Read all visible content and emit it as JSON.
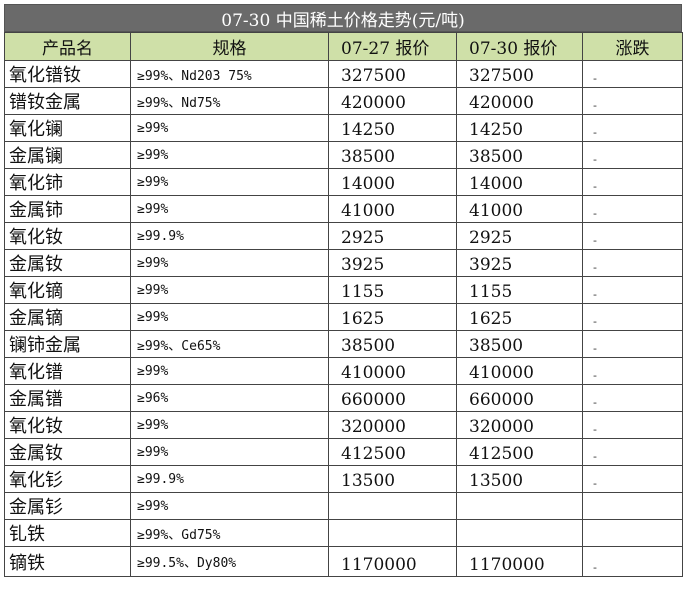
{
  "title": "07-30 中国稀土价格走势(元/吨)",
  "headers": {
    "name": "产品名",
    "spec": "规格",
    "price1": "07-27 报价",
    "price2": "07-30 报价",
    "change": "涨跌"
  },
  "rows": [
    {
      "name": "氧化镨钕",
      "spec": "≥99%、Nd203 75%",
      "p1": "327500",
      "p2": "327500",
      "chg": "-"
    },
    {
      "name": "镨钕金属",
      "spec": "≥99%、Nd75%",
      "p1": "420000",
      "p2": "420000",
      "chg": "-"
    },
    {
      "name": "氧化镧",
      "spec": "≥99%",
      "p1": "14250",
      "p2": "14250",
      "chg": "-"
    },
    {
      "name": "金属镧",
      "spec": "≥99%",
      "p1": "38500",
      "p2": "38500",
      "chg": "-"
    },
    {
      "name": "氧化铈",
      "spec": "≥99%",
      "p1": "14000",
      "p2": "14000",
      "chg": "-"
    },
    {
      "name": "金属铈",
      "spec": "≥99%",
      "p1": "41000",
      "p2": "41000",
      "chg": "-"
    },
    {
      "name": "氧化钕",
      "spec": "≥99.9%",
      "p1": "2925",
      "p2": "2925",
      "chg": "-"
    },
    {
      "name": "金属钕",
      "spec": "≥99%",
      "p1": "3925",
      "p2": "3925",
      "chg": "-"
    },
    {
      "name": "氧化镝",
      "spec": "≥99%",
      "p1": "1155",
      "p2": "1155",
      "chg": "-"
    },
    {
      "name": "金属镝",
      "spec": "≥99%",
      "p1": "1625",
      "p2": "1625",
      "chg": "-"
    },
    {
      "name": "镧铈金属",
      "spec": "≥99%、Ce65%",
      "p1": "38500",
      "p2": "38500",
      "chg": "-"
    },
    {
      "name": "氧化镨",
      "spec": "≥99%",
      "p1": "410000",
      "p2": "410000",
      "chg": "-"
    },
    {
      "name": "金属镨",
      "spec": "≥96%",
      "p1": "660000",
      "p2": "660000",
      "chg": "-"
    },
    {
      "name": "氧化钕",
      "spec": "≥99%",
      "p1": "320000",
      "p2": "320000",
      "chg": "-"
    },
    {
      "name": "金属钕",
      "spec": "≥99%",
      "p1": "412500",
      "p2": "412500",
      "chg": "-"
    },
    {
      "name": "氧化钐",
      "spec": "≥99.9%",
      "p1": "13500",
      "p2": "13500",
      "chg": "-"
    },
    {
      "name": "金属钐",
      "spec": "≥99%",
      "p1": "",
      "p2": "",
      "chg": ""
    },
    {
      "name": "钆铁",
      "spec": "≥99%、Gd75%",
      "p1": "",
      "p2": "",
      "chg": ""
    },
    {
      "name": "镝铁",
      "spec": "≥99.5%、Dy80%",
      "p1": "1170000",
      "p2": "1170000",
      "chg": "-"
    }
  ]
}
